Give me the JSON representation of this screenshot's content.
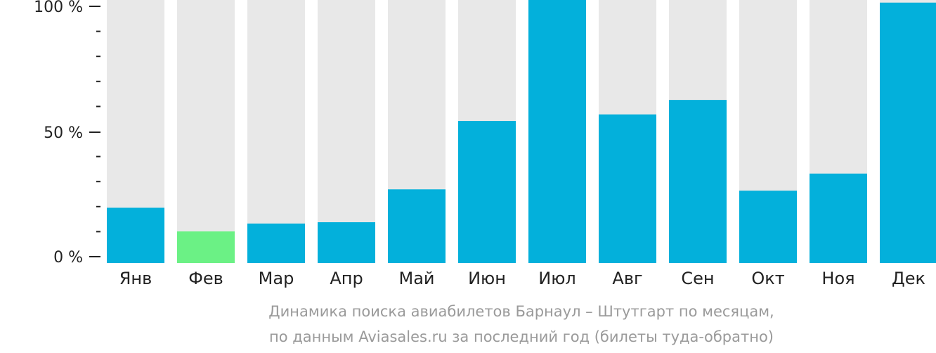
{
  "chart_data": {
    "type": "bar",
    "categories": [
      "Янв",
      "Фев",
      "Мар",
      "Апр",
      "Май",
      "Июн",
      "Июл",
      "Авг",
      "Сен",
      "Окт",
      "Ноя",
      "Дек"
    ],
    "values": [
      21,
      12,
      15,
      15.5,
      28,
      54,
      100,
      56.5,
      62,
      27.5,
      34,
      99
    ],
    "highlight_index": 1,
    "ylim": [
      0,
      100
    ],
    "y_ticks": [
      {
        "value": 0,
        "label": "0 %"
      },
      {
        "value": 50,
        "label": "50 %"
      },
      {
        "value": 100,
        "label": "100 %"
      }
    ],
    "minor_tick_step": 10,
    "colors": {
      "bar": "#03b0db",
      "highlight": "#6bf185",
      "track": "#e8e8e8",
      "axis": "#222222"
    },
    "caption_line1": "Динамика поиска авиабилетов Барнаул – Штутгарт по месяцам,",
    "caption_line2": "по данным Aviasales.ru за последний год (билеты туда-обратно)"
  }
}
